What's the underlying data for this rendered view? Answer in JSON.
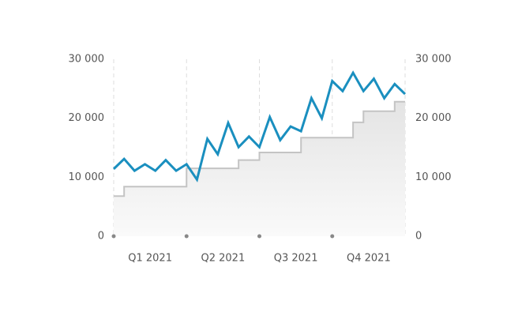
{
  "chart_data": {
    "type": "line",
    "quarters": [
      "Q1 2021",
      "Q2 2021",
      "Q3 2021",
      "Q4 2021"
    ],
    "ylim": [
      0,
      30000
    ],
    "yticks": [
      0,
      {
        "value": 10000,
        "label": "10 000"
      },
      {
        "value": 20000,
        "label": "20 000"
      },
      {
        "value": 30000,
        "label": "30 000"
      }
    ],
    "y2lim": [
      0,
      30000
    ],
    "y2ticks": [
      0,
      {
        "value": 10000,
        "label": "10 000"
      },
      {
        "value": 20000,
        "label": "20 000"
      },
      {
        "value": 30000,
        "label": "30 000"
      }
    ],
    "series": [
      {
        "color": "#1a8fbf",
        "values": [
          11400,
          13100,
          11100,
          12200,
          11100,
          12900,
          11100,
          12200,
          9600,
          16500,
          13900,
          19200,
          15100,
          16900,
          15100,
          20200,
          16300,
          18600,
          17800,
          23400,
          20000,
          26300,
          24600,
          27700,
          24600,
          26700,
          23400,
          25800,
          24100
        ]
      },
      {
        "color": "#c4c4c4",
        "axis": "y2",
        "step": true,
        "values": [
          6800,
          8400,
          8400,
          8400,
          8400,
          8400,
          8400,
          11500,
          11500,
          11500,
          11500,
          11500,
          12900,
          12900,
          14200,
          14200,
          14200,
          14200,
          16700,
          16700,
          16700,
          16700,
          16700,
          19300,
          21200,
          21200,
          21200,
          22800,
          22800
        ]
      }
    ]
  }
}
